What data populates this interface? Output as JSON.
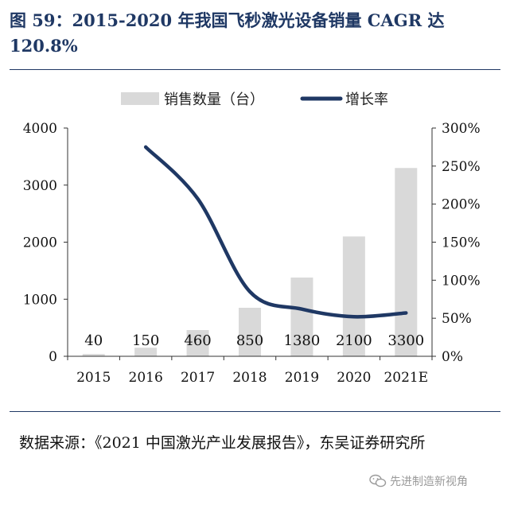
{
  "figure": {
    "title": "图 59：2015-2020 年我国飞秒激光设备销量 CAGR 达 120.8%"
  },
  "chart_data": {
    "type": "bar",
    "categories": [
      "2015",
      "2016",
      "2017",
      "2018",
      "2019",
      "2020",
      "2021E"
    ],
    "series": [
      {
        "name": "销售数量（台）",
        "type": "bar",
        "axis": "left",
        "color": "#d9d9d9",
        "values": [
          40,
          150,
          460,
          850,
          1380,
          2100,
          3300
        ],
        "data_labels": [
          "40",
          "150",
          "460",
          "850",
          "1380",
          "2100",
          "3300"
        ]
      },
      {
        "name": "增长率",
        "type": "line",
        "axis": "right",
        "color": "#1f3864",
        "values": [
          null,
          2.75,
          2.07,
          0.85,
          0.62,
          0.52,
          0.57
        ]
      }
    ],
    "y_left": {
      "ylim": [
        0,
        4000
      ],
      "ticks": [
        0,
        1000,
        2000,
        3000,
        4000
      ],
      "tick_labels": [
        "0",
        "1000",
        "2000",
        "3000",
        "4000"
      ]
    },
    "y_right": {
      "ylim": [
        0,
        3
      ],
      "ticks": [
        0,
        0.5,
        1,
        1.5,
        2,
        2.5,
        3
      ],
      "tick_labels": [
        "0%",
        "50%",
        "100%",
        "150%",
        "200%",
        "250%",
        "300%"
      ]
    },
    "legend_position": "top-center",
    "grid": false
  },
  "source": {
    "text": "数据来源：《2021 中国激光产业发展报告》，东吴证券研究所"
  },
  "watermark": {
    "text": "先进制造新视角",
    "icon": "wechat-icon"
  }
}
